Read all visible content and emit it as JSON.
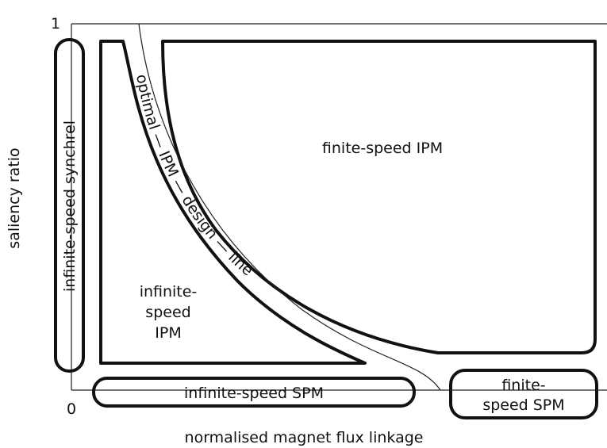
{
  "axes": {
    "y_label": "saliency ratio",
    "x_label": "normalised magnet flux linkage",
    "y_top_tick": "1",
    "origin_tick": "0"
  },
  "regions": {
    "synchrel": {
      "label": "infinite-speed synchrel"
    },
    "infinite_ipm": {
      "lines": [
        "infinite-",
        "speed",
        "IPM"
      ]
    },
    "finite_ipm": {
      "label": "finite-speed IPM"
    },
    "infinite_spm": {
      "label": "infinite-speed SPM"
    },
    "finite_spm": {
      "lines": [
        "finite-",
        "speed SPM"
      ]
    }
  },
  "design_line": {
    "label": "optimal — IPM — design — line"
  }
}
